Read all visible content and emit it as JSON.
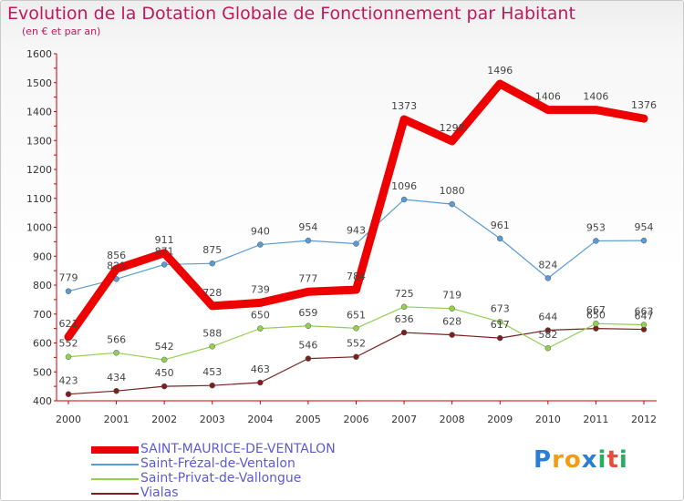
{
  "title": "Evolution de la Dotation Globale de Fonctionnement par Habitant",
  "subtitle": "(en € et par an)",
  "logo": {
    "letters": [
      "P",
      "r",
      "o",
      "x",
      "i",
      "t",
      "i"
    ],
    "colors": [
      "#2a7fd4",
      "#f39c12",
      "#f39c12",
      "#2a7fd4",
      "#27ae60",
      "#e74c3c",
      "#27ae60"
    ]
  },
  "chart_data": {
    "type": "line",
    "title": "Evolution de la Dotation Globale de Fonctionnement par Habitant",
    "subtitle": "(en € et par an)",
    "x": [
      "2000",
      "2001",
      "2002",
      "2003",
      "2004",
      "2005",
      "2006",
      "2007",
      "2008",
      "2009",
      "2010",
      "2011",
      "2012"
    ],
    "ylim": [
      400,
      1600
    ],
    "yticks": [
      400,
      500,
      600,
      700,
      800,
      900,
      1000,
      1100,
      1200,
      1300,
      1400,
      1500,
      1600
    ],
    "grid": false,
    "legend_position": "bottom-left",
    "series": [
      {
        "name": "SAINT-MAURICE-DE-VENTALON",
        "color": "#ee0000",
        "style": "thick",
        "values": [
          621,
          856,
          911,
          728,
          739,
          777,
          784,
          1373,
          1298,
          1496,
          1406,
          1406,
          1376
        ],
        "labels": [
          "621",
          "856",
          "911",
          "728",
          "739",
          "777",
          "784",
          "1373",
          "1298",
          "1496",
          "1406",
          "1406",
          "1376"
        ]
      },
      {
        "name": "Saint-Frézal-de-Ventalon",
        "color": "#5b9bd5",
        "values": [
          779,
          821,
          871,
          875,
          940,
          954,
          943,
          1096,
          1080,
          961,
          824,
          953,
          954
        ],
        "labels": [
          "779",
          "821",
          "871",
          "875",
          "940",
          "954",
          "943",
          "1096",
          "1080",
          "961",
          "824",
          "953",
          "954"
        ]
      },
      {
        "name": "Saint-Privat-de-Vallongue",
        "color": "#92d050",
        "values": [
          552,
          566,
          542,
          588,
          650,
          659,
          651,
          725,
          719,
          673,
          582,
          667,
          663
        ],
        "labels": [
          "552",
          "566",
          "542",
          "588",
          "650",
          "659",
          "651",
          "725",
          "719",
          "673",
          "582",
          "667",
          "663"
        ]
      },
      {
        "name": "Vialas",
        "color": "#7b1f1f",
        "values": [
          423,
          434,
          450,
          453,
          463,
          546,
          552,
          636,
          628,
          617,
          644,
          650,
          647
        ],
        "labels": [
          "423",
          "434",
          "450",
          "453",
          "463",
          "546",
          "552",
          "636",
          "628",
          "617",
          "644",
          "650",
          "647"
        ]
      }
    ]
  }
}
